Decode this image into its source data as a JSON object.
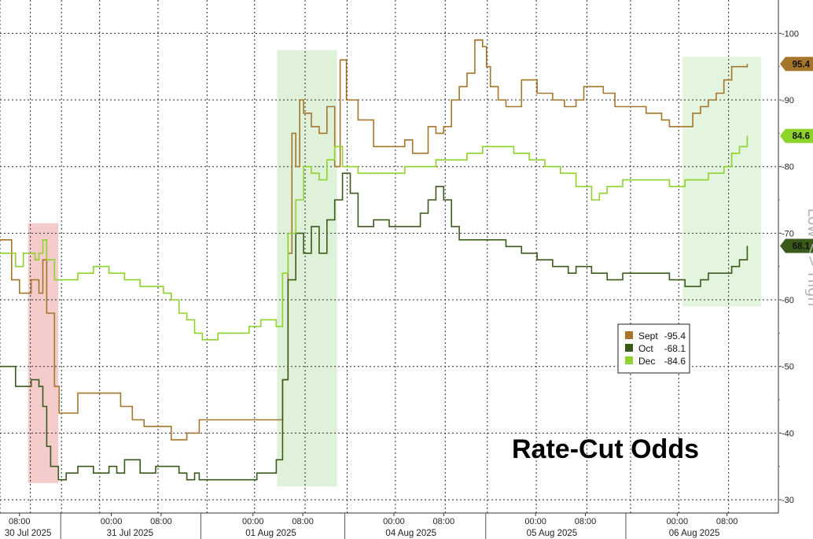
{
  "chart_data": {
    "type": "line",
    "title": "Rate-Cut Odds",
    "ylabel": "Low <> High",
    "ylim": [
      28,
      105
    ],
    "xlim": [
      0,
      100
    ],
    "y_ticks": [
      {
        "v": 30,
        "label": "-30"
      },
      {
        "v": 40,
        "label": "-40"
      },
      {
        "v": 50,
        "label": "-50"
      },
      {
        "v": 60,
        "label": "-60"
      },
      {
        "v": 70,
        "label": "-70"
      },
      {
        "v": 80,
        "label": "-80"
      },
      {
        "v": 90,
        "label": "-90"
      },
      {
        "v": 100,
        "label": "-100"
      }
    ],
    "x_time_ticks": [
      {
        "x": 2.5,
        "label": "08:00"
      },
      {
        "x": 14.3,
        "label": "00:00"
      },
      {
        "x": 20.7,
        "label": "08:00"
      },
      {
        "x": 32.5,
        "label": "00:00"
      },
      {
        "x": 38.9,
        "label": "08:00"
      },
      {
        "x": 50.6,
        "label": "00:00"
      },
      {
        "x": 57.0,
        "label": "08:00"
      },
      {
        "x": 68.8,
        "label": "00:00"
      },
      {
        "x": 75.2,
        "label": "08:00"
      },
      {
        "x": 87.0,
        "label": "00:00"
      },
      {
        "x": 93.4,
        "label": "08:00"
      }
    ],
    "x_day_labels": [
      {
        "x": 3.6,
        "label": "30 Jul 2025"
      },
      {
        "x": 16.7,
        "label": "31 Jul 2025"
      },
      {
        "x": 34.8,
        "label": "01 Aug 2025"
      },
      {
        "x": 52.8,
        "label": "04 Aug 2025"
      },
      {
        "x": 70.9,
        "label": "05 Aug 2025"
      },
      {
        "x": 89.2,
        "label": "06 Aug 2025"
      }
    ],
    "day_separators": [
      7.8,
      25.8,
      44.3,
      62.4,
      80.4
    ],
    "vgrid": [
      0,
      3.9,
      7.9,
      12.8,
      20.3,
      26.6,
      32.7,
      39.2,
      44.6,
      50.8,
      57.2,
      62.6,
      68.9,
      75.4,
      81.0,
      87.2,
      93.6
    ],
    "shaded_regions": [
      {
        "x": [
          3.6,
          7.5
        ],
        "y": [
          32.5,
          71.5
        ],
        "color": "#f5cccc"
      },
      {
        "x": [
          35.6,
          43.3
        ],
        "y": [
          32,
          97.5
        ],
        "color": "#dff2d9"
      },
      {
        "x": [
          87.7,
          97.8
        ],
        "y": [
          59,
          96.5
        ],
        "color": "#e3f4df"
      }
    ],
    "series": [
      {
        "name": "Sept",
        "legend_value": "-95.4",
        "last_value": "95.4",
        "color": "#a5752b",
        "x": [
          0,
          1.5,
          2.5,
          4,
          5,
          5.5,
          6,
          7,
          7.6,
          8.5,
          10,
          12,
          13.5,
          14.5,
          15.5,
          17,
          18.5,
          20,
          22,
          24,
          25,
          25.6,
          28,
          33,
          35.5,
          36.3,
          37,
          37.5,
          38,
          38.5,
          39,
          40,
          41,
          42,
          43,
          43.7,
          44.5,
          46,
          48,
          50,
          52,
          53,
          54,
          55,
          56,
          57,
          58,
          59,
          60,
          61,
          62,
          62.5,
          63,
          64,
          65,
          67,
          69,
          71,
          72.5,
          74,
          75,
          76,
          77.5,
          79,
          81,
          83,
          85,
          86,
          87,
          88,
          89,
          90,
          91,
          92,
          93,
          94,
          95,
          96
        ],
        "y": [
          69,
          63,
          61,
          63,
          61,
          66,
          58,
          47,
          43,
          43,
          46,
          46,
          46,
          46,
          44,
          42,
          41,
          41,
          39,
          40,
          40,
          42,
          42,
          42,
          42,
          48,
          67,
          85,
          80,
          90,
          88,
          86,
          85,
          89,
          80,
          96,
          90,
          87,
          83,
          83,
          84,
          82,
          82,
          86,
          85,
          86,
          90,
          92,
          94,
          99,
          98,
          95,
          92,
          90,
          89,
          93,
          91,
          90,
          89,
          90,
          92,
          92,
          91,
          89,
          89,
          88,
          87,
          86,
          86,
          86,
          88,
          89,
          90,
          91,
          93,
          95,
          95,
          95.4
        ]
      },
      {
        "name": "Oct",
        "legend_value": "-68.1",
        "last_value": "68.1",
        "color": "#3a5a1c",
        "x": [
          0,
          2,
          4,
          5,
          5.5,
          6,
          6.5,
          7.5,
          8.5,
          10,
          12,
          14,
          15,
          16,
          18,
          20,
          22,
          23,
          24,
          25,
          25.6,
          28,
          33,
          35.5,
          36.3,
          37,
          38,
          39,
          40,
          41,
          42,
          43,
          44,
          45,
          46,
          47,
          48,
          50,
          52,
          54,
          55,
          56,
          57,
          58,
          59,
          60,
          61,
          62,
          63,
          64,
          65,
          67,
          69,
          71,
          72,
          73,
          74,
          76,
          78,
          80,
          82,
          84,
          86,
          87,
          88,
          89,
          90,
          91,
          92,
          93,
          94,
          95,
          96
        ],
        "y": [
          50,
          47,
          48,
          47,
          44,
          38,
          35,
          33,
          34,
          35,
          34,
          35,
          34,
          36,
          34,
          35,
          35,
          34,
          33,
          34,
          33,
          33,
          34,
          36,
          48,
          63,
          70,
          67,
          71,
          67,
          72,
          75,
          79,
          76,
          71,
          71,
          72,
          71,
          71,
          73,
          75,
          77,
          75,
          71,
          69,
          69,
          69,
          69,
          69,
          69,
          68,
          67,
          66,
          65,
          65,
          64,
          65,
          64,
          63,
          64,
          64,
          64,
          63,
          63,
          62,
          62,
          63,
          64,
          64,
          64,
          65,
          66,
          68.1
        ]
      },
      {
        "name": "Dec",
        "legend_value": "-84.6",
        "last_value": "84.6",
        "color": "#8ed32c",
        "x": [
          0,
          2,
          3,
          4.5,
          5,
          5.5,
          6,
          7,
          8,
          10,
          12,
          14,
          16,
          18,
          20,
          21,
          22,
          23,
          24,
          25,
          26,
          28,
          30,
          32,
          33.5,
          35.5,
          36.3,
          37,
          38,
          39,
          40,
          41,
          42,
          43,
          44,
          45,
          46,
          48,
          50,
          52,
          54,
          56,
          58,
          60,
          62,
          64,
          66,
          68,
          70,
          72,
          74,
          75,
          76,
          77,
          78,
          80,
          82,
          84,
          86,
          87,
          88,
          89,
          90,
          91,
          92,
          93,
          94,
          95,
          96
        ],
        "y": [
          67,
          65,
          67,
          66,
          67,
          69,
          66,
          63,
          63,
          64,
          65,
          64,
          63,
          62,
          62,
          61,
          60,
          58,
          57,
          55,
          54,
          55,
          55,
          56,
          57,
          56,
          64,
          70,
          75,
          80,
          79,
          78,
          81,
          83,
          80,
          80,
          79,
          79,
          79,
          80,
          80,
          81,
          81,
          82,
          83,
          83,
          82,
          81,
          80,
          79,
          77,
          77,
          75,
          76,
          77,
          78,
          78,
          78,
          77,
          77,
          78,
          78,
          78,
          79,
          79,
          80,
          82,
          83,
          84.6
        ]
      }
    ]
  }
}
